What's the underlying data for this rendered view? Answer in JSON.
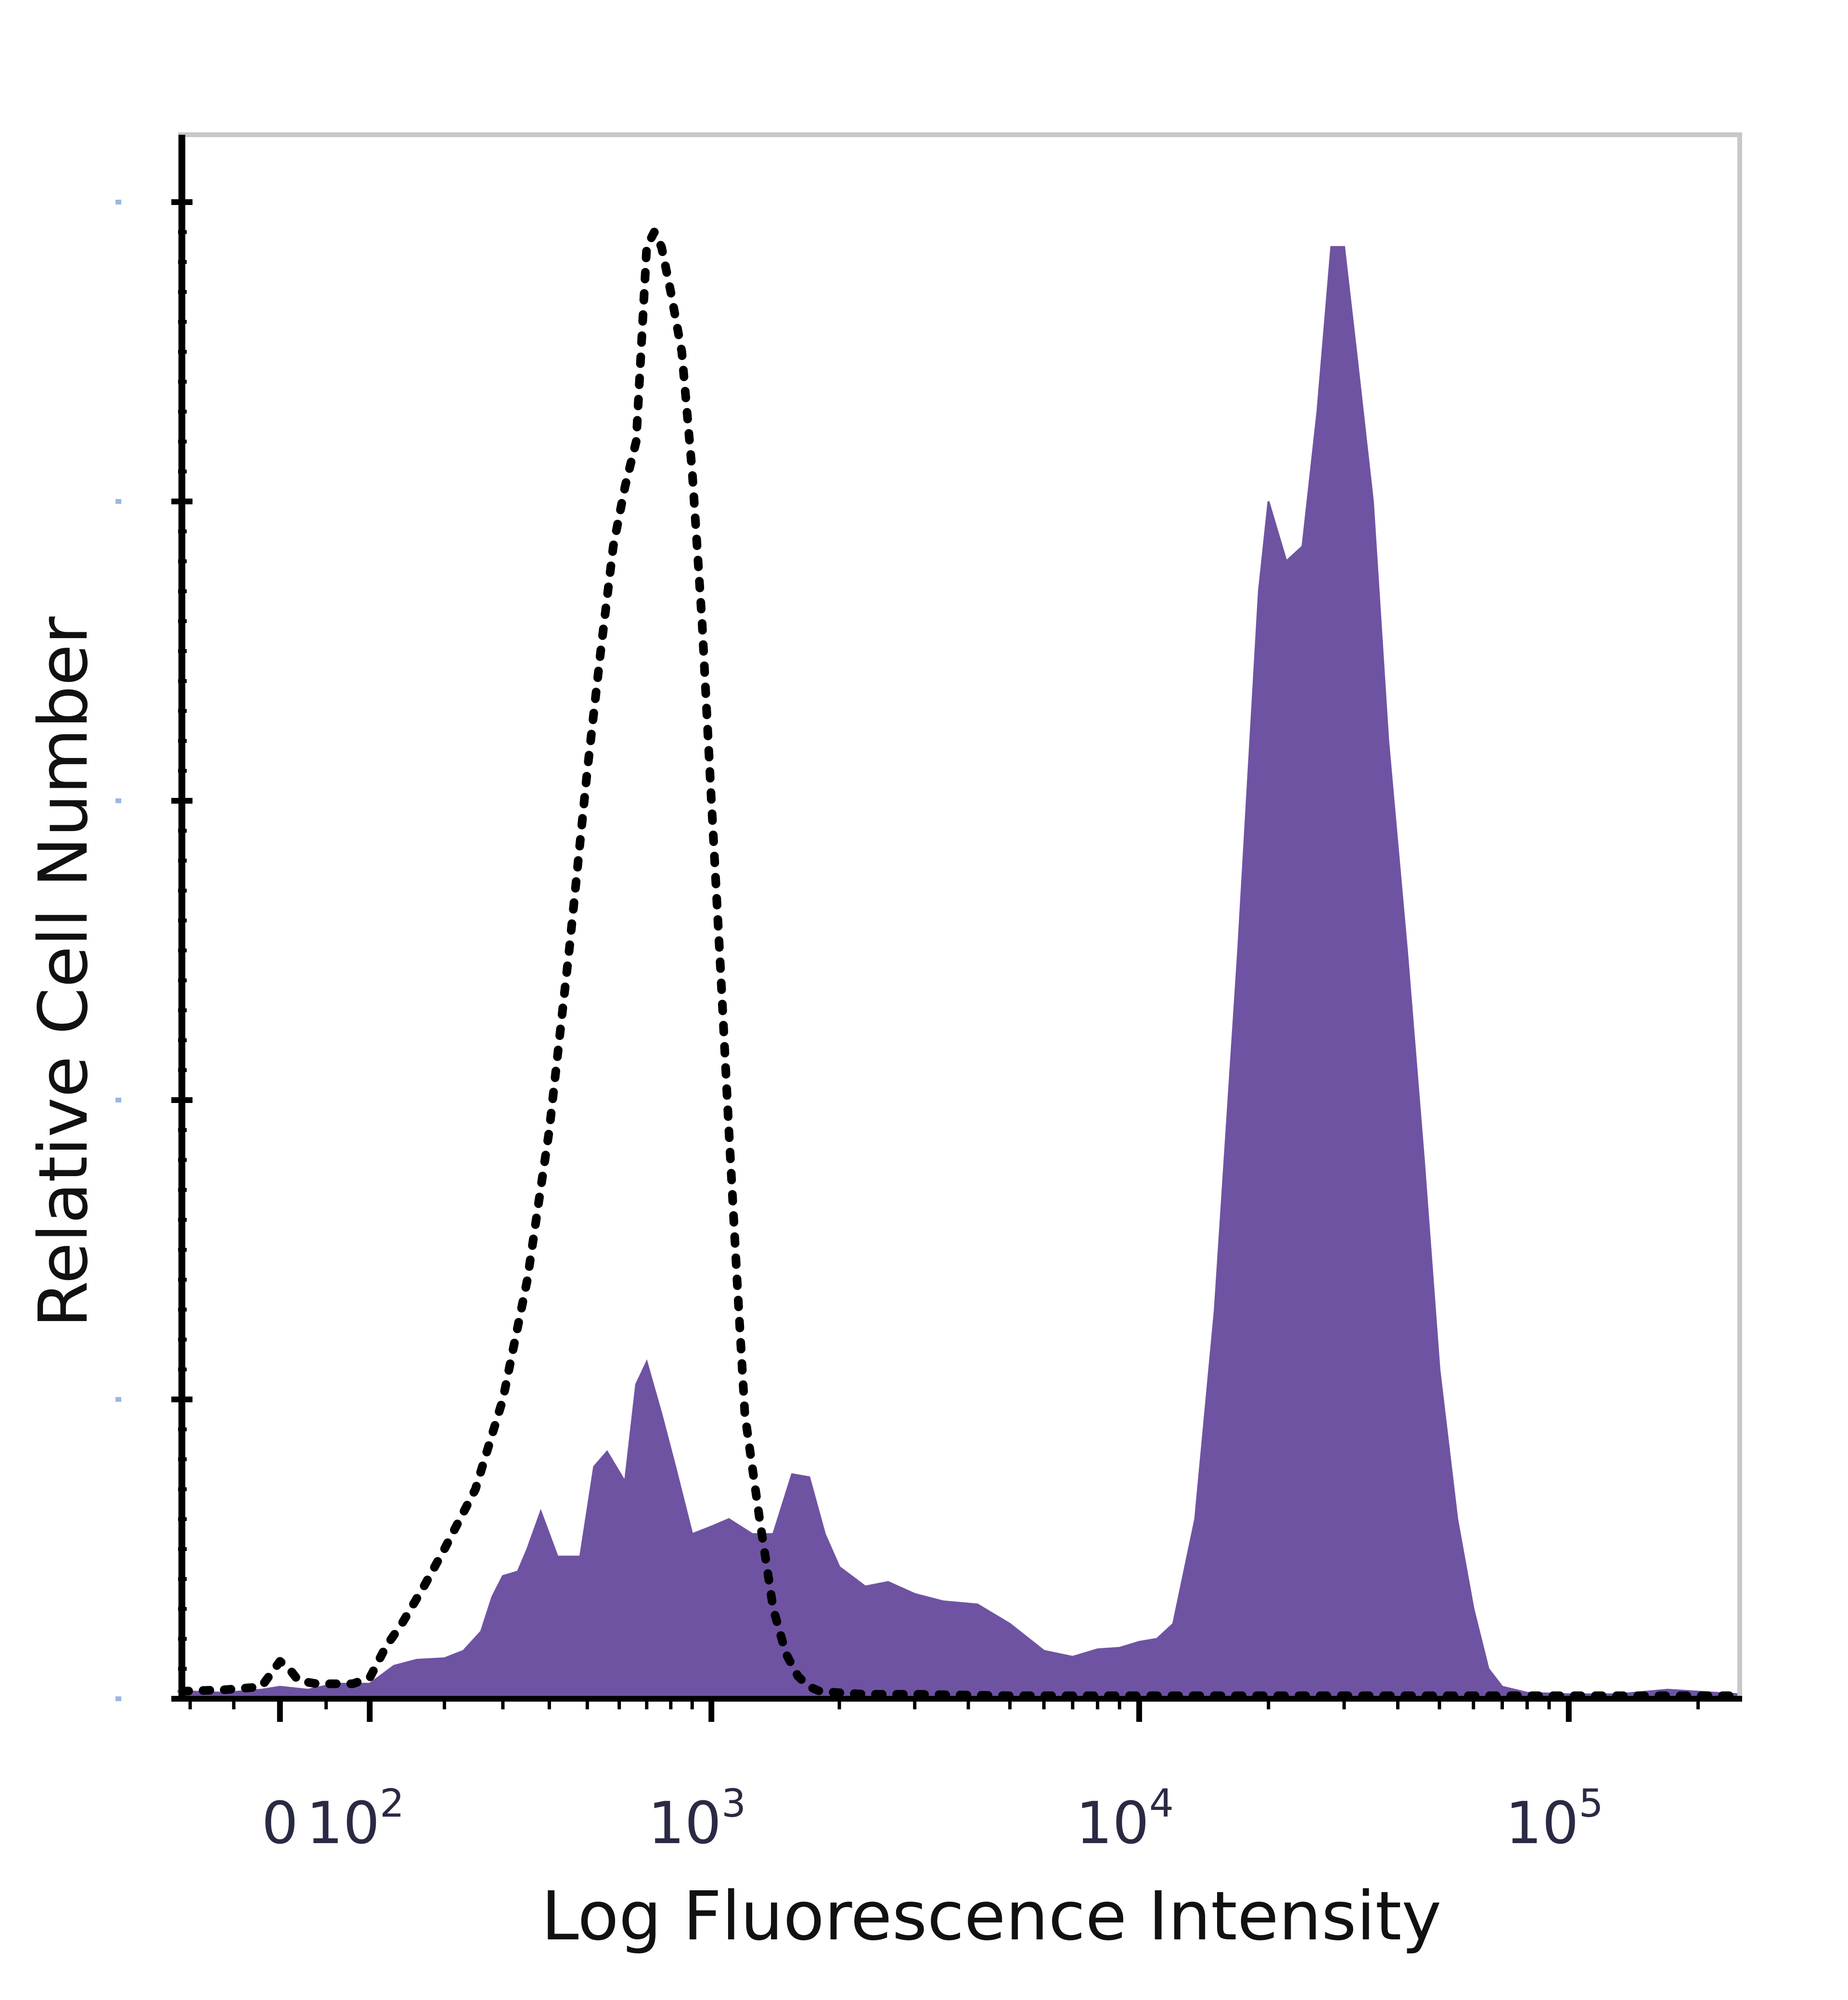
{
  "chart_data": {
    "type": "area",
    "xlabel": "Log Fluorescence Intensity",
    "ylabel": "Relative Cell Number",
    "x_scale": "biexponential",
    "x_range": [
      -110,
      250000
    ],
    "y_range": [
      0,
      1.0
    ],
    "x_ticks": [
      {
        "value": 0,
        "label": "0"
      },
      {
        "value": 100,
        "label": "10",
        "exp": "2"
      },
      {
        "value": 1000,
        "label": "10",
        "exp": "3"
      },
      {
        "value": 10000,
        "label": "10",
        "exp": "4"
      },
      {
        "value": 100000,
        "label": "10",
        "exp": "5"
      }
    ],
    "y_ticks": [
      0,
      0.2,
      0.4,
      0.6,
      0.8,
      1.0
    ],
    "grid": false,
    "legend": "none",
    "series": [
      {
        "style": "filled",
        "color": "#6f53a3",
        "x": [
          -110,
          -60,
          -20,
          0,
          30,
          60,
          100,
          130,
          160,
          200,
          230,
          260,
          280,
          300,
          330,
          350,
          380,
          420,
          480,
          520,
          560,
          620,
          660,
          700,
          760,
          820,
          900,
          1000,
          1100,
          1250,
          1400,
          1550,
          1700,
          1850,
          2000,
          2300,
          2600,
          3000,
          3500,
          4200,
          5000,
          6000,
          7000,
          8000,
          9000,
          10000,
          11000,
          12000,
          13500,
          15000,
          17000,
          19000,
          20000,
          22000,
          24000,
          26000,
          28000,
          30000,
          32000,
          35000,
          38000,
          42000,
          46000,
          50000,
          55000,
          60000,
          65000,
          70000,
          80000,
          100000,
          130000,
          170000,
          220000,
          250000
        ],
        "y": [
          0.005,
          0.004,
          0.006,
          0.008,
          0.006,
          0.01,
          0.01,
          0.022,
          0.026,
          0.027,
          0.032,
          0.045,
          0.068,
          0.082,
          0.085,
          0.1,
          0.125,
          0.095,
          0.095,
          0.155,
          0.165,
          0.145,
          0.21,
          0.225,
          0.19,
          0.155,
          0.11,
          0.115,
          0.12,
          0.11,
          0.11,
          0.15,
          0.148,
          0.11,
          0.088,
          0.075,
          0.078,
          0.07,
          0.065,
          0.063,
          0.05,
          0.032,
          0.028,
          0.033,
          0.034,
          0.038,
          0.04,
          0.05,
          0.12,
          0.26,
          0.5,
          0.74,
          0.8,
          0.76,
          0.77,
          0.86,
          0.97,
          0.97,
          0.9,
          0.8,
          0.64,
          0.5,
          0.36,
          0.22,
          0.12,
          0.06,
          0.02,
          0.008,
          0.004,
          0.003,
          0.003,
          0.006,
          0.004,
          0.003
        ]
      },
      {
        "style": "dotted",
        "color": "#000000",
        "x": [
          -110,
          -60,
          -20,
          0,
          10,
          20,
          40,
          60,
          80,
          100,
          120,
          140,
          170,
          200,
          250,
          300,
          350,
          400,
          450,
          500,
          540,
          580,
          620,
          660,
          700,
          730,
          760,
          800,
          850,
          900,
          950,
          1000,
          1050,
          1100,
          1150,
          1200,
          1300,
          1400,
          1500,
          1600,
          1700,
          1800,
          2000,
          2300,
          3000,
          5000,
          10000,
          20000,
          50000,
          100000,
          250000
        ],
        "y": [
          0.005,
          0.006,
          0.008,
          0.025,
          0.02,
          0.012,
          0.01,
          0.01,
          0.01,
          0.014,
          0.035,
          0.05,
          0.075,
          0.1,
          0.14,
          0.2,
          0.28,
          0.38,
          0.5,
          0.62,
          0.7,
          0.77,
          0.81,
          0.84,
          0.97,
          0.98,
          0.97,
          0.94,
          0.9,
          0.82,
          0.72,
          0.6,
          0.49,
          0.38,
          0.28,
          0.19,
          0.12,
          0.06,
          0.03,
          0.015,
          0.008,
          0.005,
          0.004,
          0.003,
          0.003,
          0.002,
          0.002,
          0.002,
          0.002,
          0.002,
          0.002
        ]
      }
    ]
  }
}
